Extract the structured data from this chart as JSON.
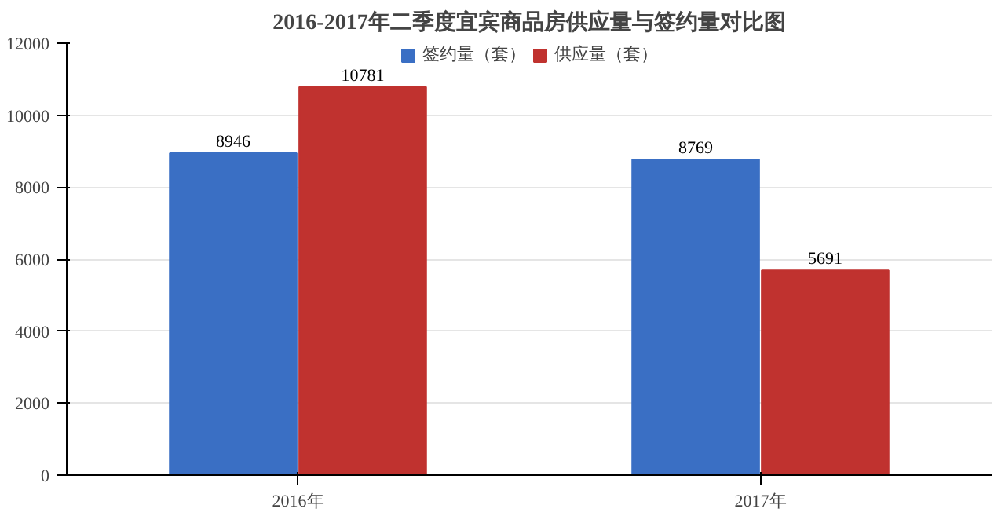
{
  "chart_data": {
    "type": "bar",
    "title": "2016-2017年二季度宜宾商品房供应量与签约量对比图",
    "categories": [
      "2016年",
      "2017年"
    ],
    "series": [
      {
        "name": "签约量（套）",
        "color": "#3a6fc4",
        "values": [
          8946,
          8769
        ]
      },
      {
        "name": "供应量（套）",
        "color": "#c0322f",
        "values": [
          10781,
          5691
        ]
      }
    ],
    "ylim": [
      0,
      12000
    ],
    "yticks": [
      0,
      2000,
      4000,
      6000,
      8000,
      10000,
      12000
    ],
    "grid": "y",
    "legend": "top",
    "data_labels": true
  }
}
